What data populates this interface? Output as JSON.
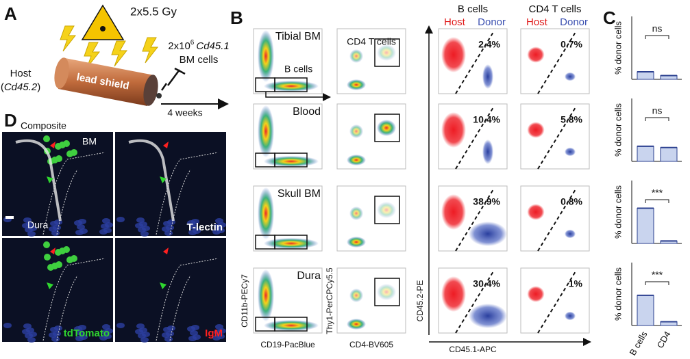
{
  "panel_a": {
    "label": "A",
    "dose": "2x5.5 Gy",
    "shield": "lead shield",
    "host": "Host",
    "host_strain": "Cd45.2",
    "donor_prefix": "2x10",
    "donor_exp": "6",
    "donor_strain": "Cd45.1",
    "donor_cells": "BM cells",
    "time": "4 weeks"
  },
  "panel_b": {
    "label": "B",
    "gate_label": "B cells",
    "gate2_title": "CD4 T cells",
    "col3_title": "B cells",
    "col4_title": "CD4 T cells",
    "host": "Host",
    "donor": "Donor",
    "rows": [
      {
        "tissue": "Tibial BM",
        "b_pct": "2.4%",
        "cd4_pct": "0.7%"
      },
      {
        "tissue": "Blood",
        "b_pct": "10.4%",
        "cd4_pct": "5.8%"
      },
      {
        "tissue": "Skull BM",
        "b_pct": "38.9%",
        "cd4_pct": "0.8%"
      },
      {
        "tissue": "Dura",
        "b_pct": "30.4%",
        "cd4_pct": "1%"
      }
    ],
    "axes": {
      "y1": "CD11b-PECy7",
      "x1": "CD19-PacBlue",
      "y2": "Thy1-PerCPCy5.5",
      "x2": "CD4-BV605",
      "y3": "CD45.2-PE",
      "x3": "CD45.1-APC"
    }
  },
  "panel_c": {
    "label": "C",
    "ylabel": "% donor cells",
    "categories": [
      "B cells",
      "CD4"
    ],
    "ylim": [
      0,
      50
    ],
    "plots": [
      {
        "sig": "ns",
        "values": [
          6,
          3
        ]
      },
      {
        "sig": "ns",
        "values": [
          12,
          11
        ]
      },
      {
        "sig": "***",
        "values": [
          28,
          2
        ]
      },
      {
        "sig": "***",
        "values": [
          24,
          3
        ]
      }
    ]
  },
  "panel_d": {
    "label": "D",
    "composite": "Composite",
    "bm": "BM",
    "dura": "Dura",
    "lectin": "T-lectin",
    "tdtomato": "tdTomato",
    "igm": "IgM"
  }
}
